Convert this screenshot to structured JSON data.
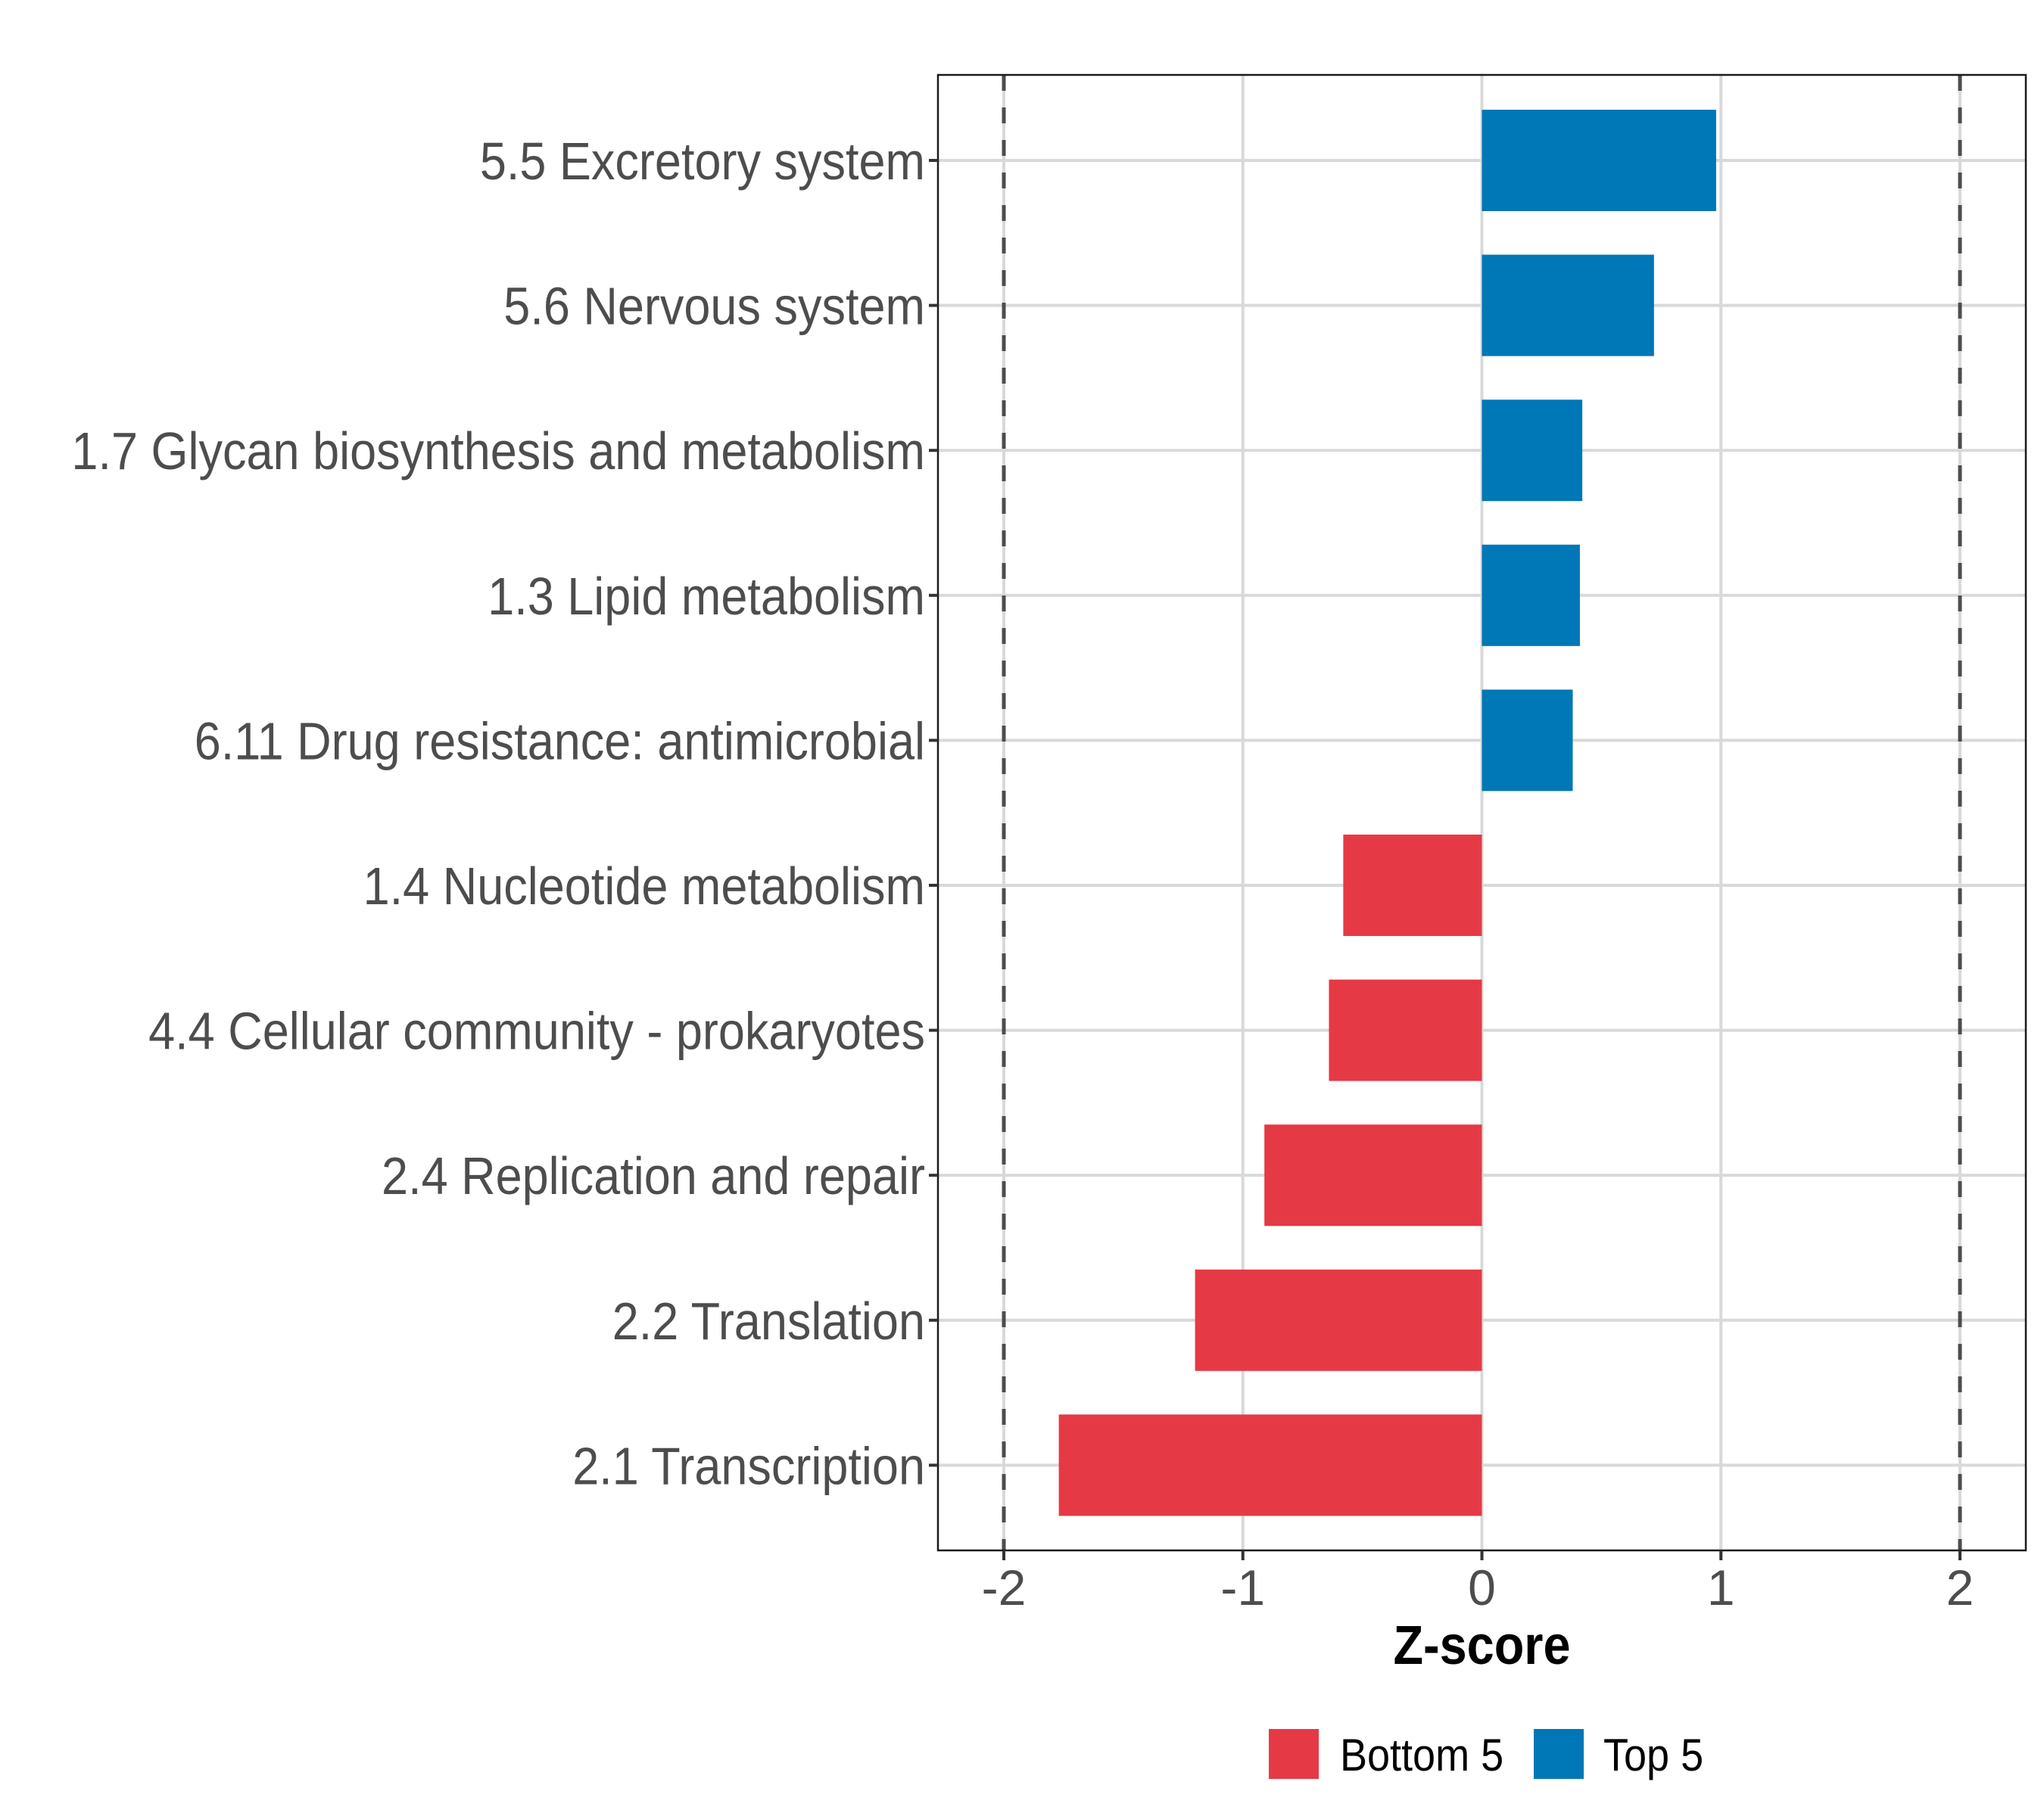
{
  "chart_data": {
    "type": "bar",
    "orientation": "horizontal",
    "title": "",
    "xlabel": "Z-score",
    "ylabel": "",
    "xlim": [
      -2.28,
      2.28
    ],
    "x_ticks": [
      -2,
      -1,
      0,
      1,
      2
    ],
    "x_tick_labels": [
      "-2",
      "-1",
      "0",
      "1",
      "2"
    ],
    "grid": true,
    "reference_lines": [
      {
        "value": -2,
        "style": "dashed"
      },
      {
        "value": 2,
        "style": "dashed"
      }
    ],
    "categories": [
      "5.5 Excretory system",
      "5.6 Nervous system",
      "1.7 Glycan biosynthesis and metabolism",
      "1.3 Lipid metabolism",
      "6.11 Drug resistance: antimicrobial",
      "1.4 Nucleotide metabolism",
      "4.4 Cellular community - prokaryotes",
      "2.4 Replication and repair",
      "2.2 Translation",
      "2.1 Transcription"
    ],
    "values": [
      0.98,
      0.72,
      0.42,
      0.41,
      0.38,
      -0.58,
      -0.64,
      -0.91,
      -1.2,
      -1.77
    ],
    "groups": [
      "Top 5",
      "Top 5",
      "Top 5",
      "Top 5",
      "Top 5",
      "Bottom 5",
      "Bottom 5",
      "Bottom 5",
      "Bottom 5",
      "Bottom 5"
    ],
    "legend": {
      "placement": "bottom",
      "entries": [
        {
          "label": "Bottom 5",
          "color": "#E63946"
        },
        {
          "label": "Top 5",
          "color": "#0077B6"
        }
      ]
    }
  },
  "colors": {
    "top": "#0077B6",
    "bottom": "#E63946",
    "grid": "#D9D9D9",
    "reference_line": "#4D4D4D",
    "axis_text": "#4D4D4D"
  }
}
